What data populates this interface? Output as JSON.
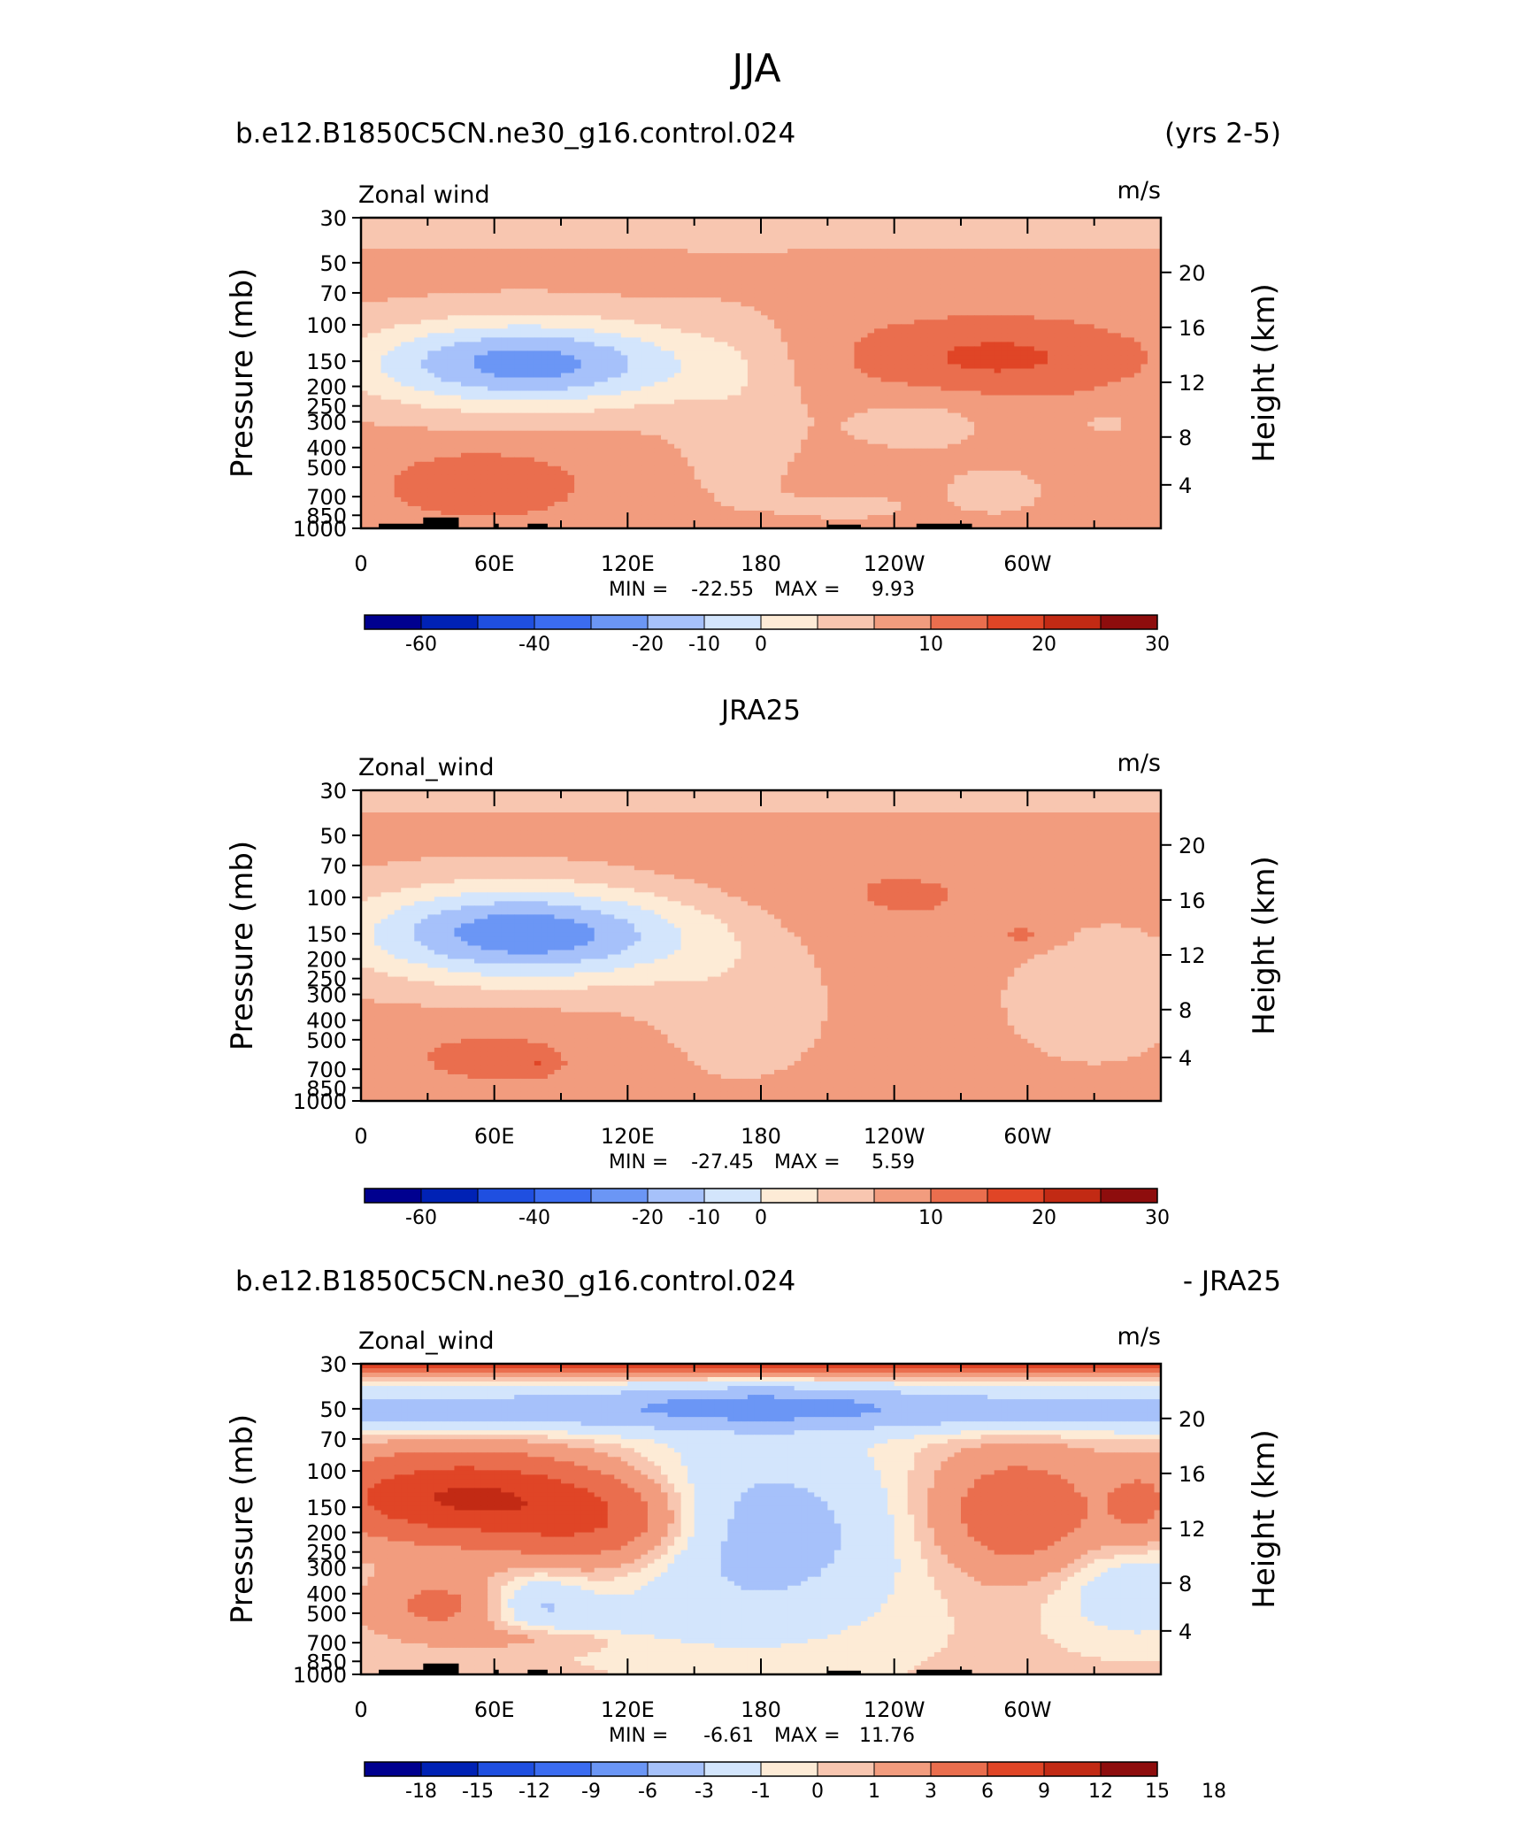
{
  "title": "JJA",
  "chart_data": [
    {
      "type": "heatmap",
      "title_left": "b.e12.B1850C5CN.ne30_g16.control.024",
      "title_right": "(yrs 2-5)",
      "title_center": "",
      "var_label": "Zonal wind",
      "units": "m/s",
      "xlabel": "",
      "ylabel": "Pressure (mb)",
      "ylabel_right": "Height (km)",
      "x_ticks": [
        "0",
        "60E",
        "120E",
        "180",
        "120W",
        "60W"
      ],
      "y_ticks": [
        "30",
        "50",
        "70",
        "100",
        "150",
        "200",
        "250",
        "300",
        "400",
        "500",
        "700",
        "850",
        "1000"
      ],
      "y2_ticks": [
        "20",
        "16",
        "12",
        "8",
        "4"
      ],
      "min_label": "MIN =",
      "min_value": "-22.55",
      "max_label": "MAX =",
      "max_value": "9.93",
      "colorbar_labels": [
        "-60",
        "-40",
        "-20",
        "-10",
        "0",
        "10",
        "20",
        "30"
      ],
      "colorbar_levels": [
        -60,
        -50,
        -40,
        -30,
        -20,
        -15,
        -10,
        -5,
        0,
        5,
        10,
        15,
        20,
        25,
        30
      ],
      "field": "model"
    },
    {
      "type": "heatmap",
      "title_left": "",
      "title_right": "",
      "title_center": "JRA25",
      "var_label": "Zonal_wind",
      "units": "m/s",
      "xlabel": "",
      "ylabel": "Pressure (mb)",
      "ylabel_right": "Height (km)",
      "x_ticks": [
        "0",
        "60E",
        "120E",
        "180",
        "120W",
        "60W"
      ],
      "y_ticks": [
        "30",
        "50",
        "70",
        "100",
        "150",
        "200",
        "250",
        "300",
        "400",
        "500",
        "700",
        "850",
        "1000"
      ],
      "y2_ticks": [
        "20",
        "16",
        "12",
        "8",
        "4"
      ],
      "min_label": "MIN =",
      "min_value": "-27.45",
      "max_label": "MAX =",
      "max_value": "5.59",
      "colorbar_labels": [
        "-60",
        "-40",
        "-20",
        "-10",
        "0",
        "10",
        "20",
        "30"
      ],
      "colorbar_levels": [
        -60,
        -50,
        -40,
        -30,
        -20,
        -15,
        -10,
        -5,
        0,
        5,
        10,
        15,
        20,
        25,
        30
      ],
      "field": "obs"
    },
    {
      "type": "heatmap",
      "title_left": "b.e12.B1850C5CN.ne30_g16.control.024",
      "title_right": "- JRA25",
      "title_center": "",
      "var_label": "Zonal_wind",
      "units": "m/s",
      "xlabel": "",
      "ylabel": "Pressure (mb)",
      "ylabel_right": "Height (km)",
      "x_ticks": [
        "0",
        "60E",
        "120E",
        "180",
        "120W",
        "60W"
      ],
      "y_ticks": [
        "30",
        "50",
        "70",
        "100",
        "150",
        "200",
        "250",
        "300",
        "400",
        "500",
        "700",
        "850",
        "1000"
      ],
      "y2_ticks": [
        "20",
        "16",
        "12",
        "8",
        "4"
      ],
      "min_label": "MIN =",
      "min_value": "-6.61",
      "max_label": "MAX =",
      "max_value": "11.76",
      "colorbar_labels": [
        "-18",
        "-15",
        "-12",
        "-9",
        "-6",
        "-3",
        "-1",
        "0",
        "1",
        "3",
        "6",
        "9",
        "12",
        "15",
        "18"
      ],
      "colorbar_levels": [
        -18,
        -15,
        -12,
        -9,
        -6,
        -3,
        -1,
        0,
        1,
        3,
        6,
        9,
        12,
        15,
        18
      ],
      "field": "diff"
    }
  ],
  "colors": [
    "#00008f",
    "#0022b5",
    "#1f4fe0",
    "#3b6cf0",
    "#6b96f5",
    "#a6c1fa",
    "#d3e5fc",
    "#fdebd6",
    "#f8c6b0",
    "#f29c7e",
    "#ea6e4e",
    "#e04526",
    "#c22a14",
    "#8e0d0d"
  ]
}
